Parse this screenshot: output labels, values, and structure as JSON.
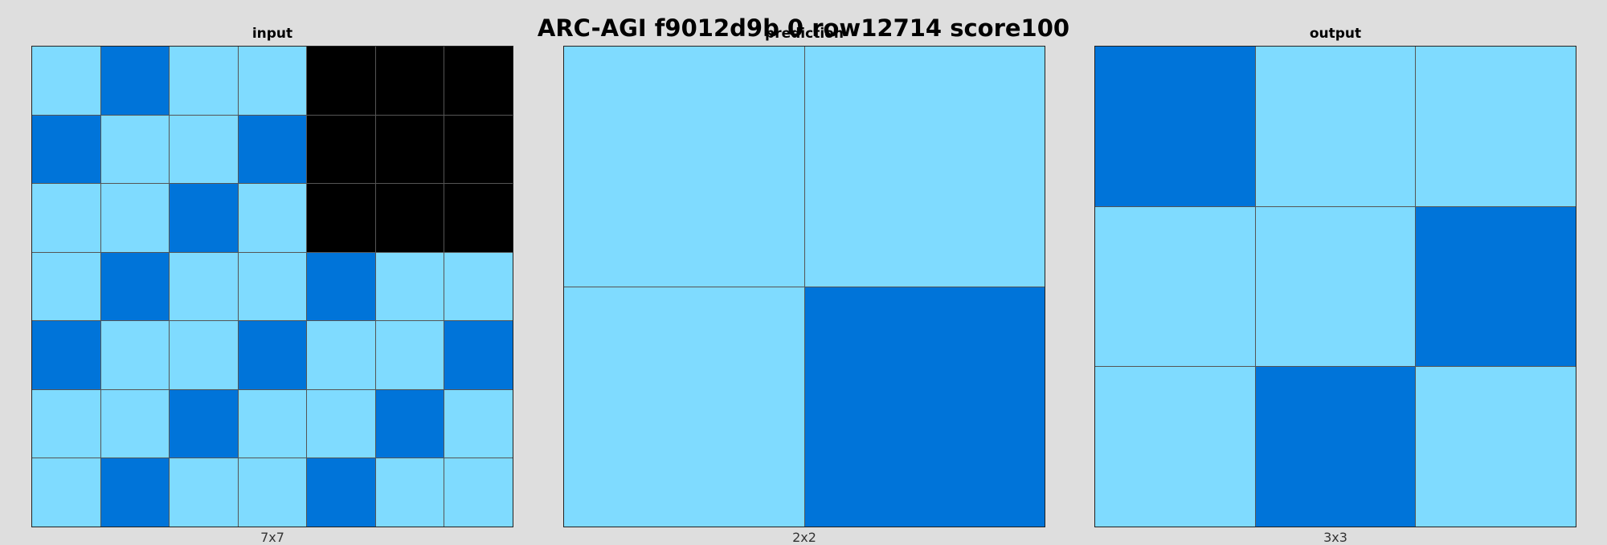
{
  "title": "ARC-AGI f9012d9b 0 row12714 score100",
  "colors": {
    "0": "#000000",
    "1": "#0074d9",
    "8": "#7fdbff"
  },
  "panels": [
    {
      "id": "input",
      "title": "input",
      "caption": "7x7",
      "grid": [
        [
          8,
          1,
          8,
          8,
          0,
          0,
          0
        ],
        [
          1,
          8,
          8,
          1,
          0,
          0,
          0
        ],
        [
          8,
          8,
          1,
          8,
          0,
          0,
          0
        ],
        [
          8,
          1,
          8,
          8,
          1,
          8,
          8
        ],
        [
          1,
          8,
          8,
          1,
          8,
          8,
          1
        ],
        [
          8,
          8,
          1,
          8,
          8,
          1,
          8
        ],
        [
          8,
          1,
          8,
          8,
          1,
          8,
          8
        ]
      ]
    },
    {
      "id": "prediction",
      "title": "prediction",
      "caption": "2x2",
      "grid": [
        [
          8,
          8
        ],
        [
          8,
          1
        ]
      ]
    },
    {
      "id": "output",
      "title": "output",
      "caption": "3x3",
      "grid": [
        [
          1,
          8,
          8
        ],
        [
          8,
          8,
          1
        ],
        [
          8,
          1,
          8
        ]
      ]
    }
  ]
}
